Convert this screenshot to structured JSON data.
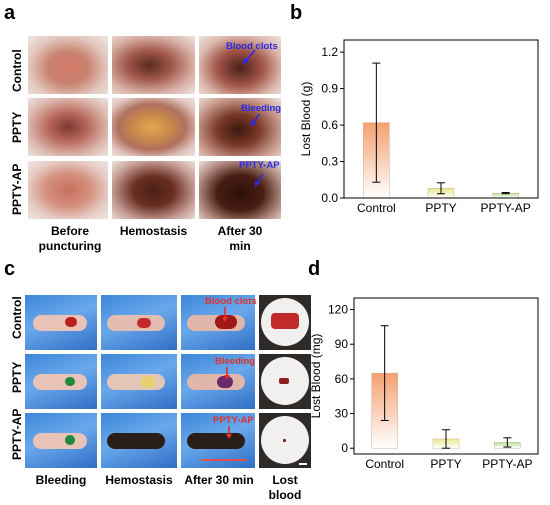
{
  "panels": {
    "a": {
      "label": "a",
      "rows": [
        "Control",
        "PPTY",
        "PPTY-AP"
      ],
      "columns": [
        "Before\npuncturing",
        "Hemostasis",
        "After 30\nmin"
      ],
      "annotations": [
        "Blood clots",
        "Bleeding",
        "PPTY-AP"
      ],
      "annotation_color": "#2a2ae8"
    },
    "c": {
      "label": "c",
      "rows": [
        "Control",
        "PPTY",
        "PPTY-AP"
      ],
      "columns": [
        "Bleeding",
        "Hemostasis",
        "After 30 min",
        "Lost\nblood"
      ],
      "annotations": [
        "Blood clots",
        "Bleeding",
        "PPTY-AP"
      ],
      "annotation_color": "#e0302a"
    },
    "b": {
      "label": "b"
    },
    "d": {
      "label": "d"
    }
  },
  "chart_data": [
    {
      "type": "bar",
      "panel": "b",
      "categories": [
        "Control",
        "PPTY",
        "PPTY-AP"
      ],
      "values": [
        0.62,
        0.08,
        0.04
      ],
      "errors": [
        0.49,
        0.045,
        0.005
      ],
      "ylabel": "Lost Blood (g)",
      "ylim": [
        0,
        1.3
      ],
      "yticks": [
        "0.0",
        "0.3",
        "0.6",
        "0.9",
        "1.2"
      ],
      "ytick_values": [
        0,
        0.3,
        0.6,
        0.9,
        1.2
      ],
      "colors": [
        "#f4a070",
        "#e8e890",
        "#b8e090"
      ]
    },
    {
      "type": "bar",
      "panel": "d",
      "categories": [
        "Control",
        "PPTY",
        "PPTY-AP"
      ],
      "values": [
        65,
        8,
        5
      ],
      "errors": [
        41,
        8,
        4
      ],
      "ylabel": "Lost Blood (mg)",
      "ylim": [
        -5,
        130
      ],
      "yticks": [
        "0",
        "30",
        "60",
        "90",
        "120"
      ],
      "ytick_values": [
        0,
        30,
        60,
        90,
        120
      ],
      "colors": [
        "#f4a070",
        "#e8e890",
        "#b8e090"
      ]
    }
  ]
}
